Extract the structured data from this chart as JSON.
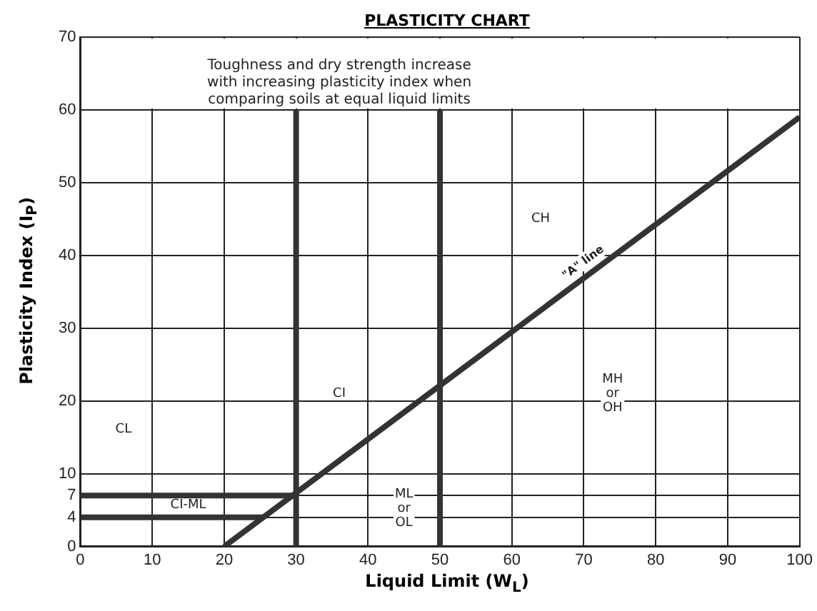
{
  "chart_data": {
    "type": "line",
    "title": "PLASTICITY CHART",
    "xlabel": "Liquid Limit  (W$_{L}$)",
    "ylabel": "Plasticity Index  (I$_{P}$)",
    "xlim": [
      0,
      100
    ],
    "xticks": [
      0,
      10,
      20,
      30,
      40,
      50,
      60,
      70,
      80,
      90,
      100
    ],
    "ylim": [
      0,
      70
    ],
    "yticks": [
      0,
      4,
      7,
      10,
      20,
      30,
      40,
      50,
      60,
      70
    ],
    "grid": true,
    "legend": false,
    "marker": "none",
    "line_style": "solid",
    "series": [
      {
        "color": "#333333",
        "x": [
          20,
          100
        ],
        "values": [
          0,
          59
        ]
      },
      {
        "color": "#333333",
        "x": [
          30,
          30
        ],
        "values": [
          0,
          60
        ]
      },
      {
        "color": "#333333",
        "x": [
          50,
          50
        ],
        "values": [
          0,
          60
        ]
      },
      {
        "color": "#333333",
        "x": [
          0,
          30
        ],
        "values": [
          7,
          7
        ]
      },
      {
        "color": "#333333",
        "x": [
          0,
          25.5
        ],
        "values": [
          4,
          4
        ]
      }
    ],
    "annotations": [
      "Toughness and dry strength increase\nwith increasing plasticity index when\ncomparing soils at equal liquid limits",
      "CL",
      "CI",
      "CH",
      "MH\nor\nOH",
      "ML\nor\nOL",
      "CI-ML",
      {
        "text": "\"A\" line",
        "x": 71,
        "y": 37.6
      }
    ]
  }
}
